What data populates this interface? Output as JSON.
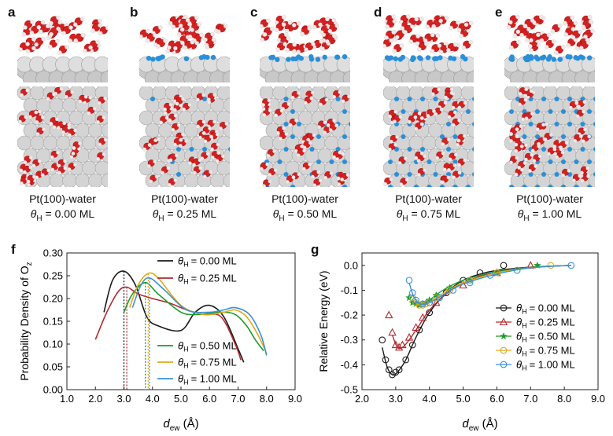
{
  "panels": [
    {
      "label": "a",
      "title": "Pt(100)-water",
      "coverage_text": "= 0.00 ML"
    },
    {
      "label": "b",
      "title": "Pt(100)-water",
      "coverage_text": "= 0.25 ML"
    },
    {
      "label": "c",
      "title": "Pt(100)-water",
      "coverage_text": "= 0.50 ML"
    },
    {
      "label": "d",
      "title": "Pt(100)-water",
      "coverage_text": "= 0.75 ML"
    },
    {
      "label": "e",
      "title": "Pt(100)-water",
      "coverage_text": "= 1.00 ML"
    }
  ],
  "theta_symbol": "θ",
  "theta_sub": "H",
  "colors": {
    "oxygen": "#d42020",
    "hydrogen": "#f3e8e8",
    "pt": "#c8c8c8",
    "h_ads": "#2a8fd8"
  },
  "chart_data": [
    {
      "type": "line",
      "panel_label": "f",
      "xlabel_main": "d",
      "xlabel_sub": "ew",
      "xlabel_unit": " (Å)",
      "ylabel_main": "Probability Density of O",
      "ylabel_sub": "z",
      "xlim": [
        1.0,
        9.0
      ],
      "ylim": [
        0.0,
        0.3
      ],
      "xticks": [
        "1.0",
        "2.0",
        "3.0",
        "4.0",
        "5.0",
        "6.0",
        "7.0",
        "8.0",
        "9.0"
      ],
      "yticks": [
        "0.00",
        "0.05",
        "0.10",
        "0.15",
        "0.20",
        "0.25",
        "0.30"
      ],
      "series": [
        {
          "name": "= 0.00 ML",
          "color": "#1a1a1a",
          "peak": 3.0,
          "x": [
            2.3,
            2.6,
            3.0,
            3.4,
            3.8,
            4.2,
            5.0,
            5.5,
            6.0,
            6.5,
            7.0,
            7.2
          ],
          "y": [
            0.17,
            0.24,
            0.26,
            0.23,
            0.16,
            0.14,
            0.13,
            0.17,
            0.185,
            0.16,
            0.09,
            0.06
          ]
        },
        {
          "name": "= 0.25 ML",
          "color": "#b02a30",
          "peak": 3.1,
          "x": [
            2.0,
            2.4,
            2.8,
            3.1,
            3.5,
            4.0,
            4.6,
            5.2,
            5.8,
            6.4,
            6.9,
            7.1
          ],
          "y": [
            0.11,
            0.17,
            0.215,
            0.225,
            0.21,
            0.2,
            0.19,
            0.175,
            0.165,
            0.16,
            0.1,
            0.065
          ]
        },
        {
          "name": "= 0.50 ML",
          "color": "#1c9a2a",
          "peak": 3.75,
          "x": [
            3.0,
            3.3,
            3.75,
            4.2,
            5.0,
            5.6,
            6.4,
            6.9,
            7.3,
            7.6,
            7.9
          ],
          "y": [
            0.17,
            0.21,
            0.235,
            0.21,
            0.17,
            0.165,
            0.17,
            0.165,
            0.14,
            0.11,
            0.085
          ]
        },
        {
          "name": "= 0.75 ML",
          "color": "#e0a818",
          "peak": 3.85,
          "x": [
            3.2,
            3.5,
            3.85,
            4.2,
            5.0,
            5.8,
            6.5,
            6.9,
            7.3,
            7.7,
            8.0
          ],
          "y": [
            0.18,
            0.23,
            0.255,
            0.245,
            0.185,
            0.165,
            0.17,
            0.175,
            0.16,
            0.12,
            0.08
          ]
        },
        {
          "name": "= 1.00 ML",
          "color": "#3a92d6",
          "peak": 3.9,
          "x": [
            3.3,
            3.6,
            3.9,
            4.4,
            5.2,
            6.0,
            6.5,
            6.9,
            7.4,
            7.8,
            8.0
          ],
          "y": [
            0.18,
            0.23,
            0.245,
            0.22,
            0.175,
            0.17,
            0.175,
            0.18,
            0.165,
            0.12,
            0.075
          ]
        }
      ]
    },
    {
      "type": "scatter",
      "panel_label": "g",
      "xlabel_main": "d",
      "xlabel_sub": "ew",
      "xlabel_unit": " (Å)",
      "ylabel": "Relative Energy (eV)",
      "xlim": [
        2.0,
        9.0
      ],
      "ylim": [
        -0.5,
        0.05
      ],
      "xticks": [
        "2.0",
        "3.0",
        "4.0",
        "5.0",
        "6.0",
        "7.0",
        "8.0",
        "9.0"
      ],
      "yticks": [
        "-0.5",
        "-0.4",
        "-0.3",
        "-0.2",
        "-0.1",
        "0.0"
      ],
      "series": [
        {
          "name": "= 0.00 ML",
          "color": "#1a1a1a",
          "marker": "circle",
          "points_x": [
            2.6,
            2.7,
            2.8,
            2.9,
            3.0,
            3.1,
            3.3,
            3.5,
            3.7,
            4.0,
            4.5,
            5.0,
            5.5,
            6.2
          ],
          "points_y": [
            -0.3,
            -0.38,
            -0.42,
            -0.44,
            -0.43,
            -0.42,
            -0.38,
            -0.32,
            -0.26,
            -0.19,
            -0.11,
            -0.06,
            -0.03,
            0.0
          ],
          "fit_x": [
            2.6,
            2.75,
            2.9,
            3.05,
            3.3,
            3.6,
            4.0,
            4.5,
            5.0,
            5.5,
            6.0,
            7.0,
            8.2
          ],
          "fit_y": [
            -0.33,
            -0.41,
            -0.44,
            -0.43,
            -0.38,
            -0.29,
            -0.19,
            -0.11,
            -0.06,
            -0.035,
            -0.02,
            -0.007,
            0.0
          ]
        },
        {
          "name": "= 0.25 ML",
          "color": "#b02a30",
          "marker": "triangle",
          "points_x": [
            2.8,
            2.9,
            3.0,
            3.1,
            3.2,
            3.4,
            3.6,
            3.8,
            4.2,
            5.0,
            6.0,
            7.0
          ],
          "points_y": [
            -0.2,
            -0.27,
            -0.32,
            -0.33,
            -0.32,
            -0.29,
            -0.25,
            -0.21,
            -0.15,
            -0.08,
            -0.03,
            0.0
          ],
          "fit_x": [
            2.9,
            3.05,
            3.2,
            3.4,
            3.7,
            4.0,
            4.5,
            5.0,
            6.0,
            7.0,
            8.2
          ],
          "fit_y": [
            -0.28,
            -0.33,
            -0.33,
            -0.3,
            -0.24,
            -0.18,
            -0.115,
            -0.07,
            -0.025,
            -0.008,
            0.0
          ]
        },
        {
          "name": "= 0.50 ML",
          "color": "#1c9a2a",
          "marker": "star",
          "points_x": [
            3.4,
            3.5,
            3.6,
            3.7,
            3.8,
            3.9,
            4.0,
            4.2,
            4.6,
            5.2,
            6.0,
            7.2
          ],
          "points_y": [
            -0.13,
            -0.15,
            -0.155,
            -0.16,
            -0.155,
            -0.15,
            -0.14,
            -0.12,
            -0.09,
            -0.06,
            -0.03,
            0.0
          ],
          "fit_x": [
            3.4,
            3.6,
            3.8,
            4.0,
            4.4,
            5.0,
            6.0,
            7.0,
            8.2
          ],
          "fit_y": [
            -0.135,
            -0.155,
            -0.16,
            -0.14,
            -0.1,
            -0.06,
            -0.025,
            -0.008,
            0.0
          ]
        },
        {
          "name": "= 0.75 ML",
          "color": "#e0a818",
          "marker": "circle",
          "points_x": [
            3.5,
            3.6,
            3.7,
            3.8,
            3.9,
            4.0,
            4.2,
            4.6,
            5.2,
            6.0,
            7.6
          ],
          "points_y": [
            -0.13,
            -0.15,
            -0.16,
            -0.16,
            -0.155,
            -0.15,
            -0.13,
            -0.1,
            -0.06,
            -0.03,
            0.0
          ],
          "fit_x": [
            3.5,
            3.7,
            3.9,
            4.1,
            4.5,
            5.0,
            6.0,
            7.0,
            8.2
          ],
          "fit_y": [
            -0.14,
            -0.16,
            -0.155,
            -0.14,
            -0.105,
            -0.07,
            -0.03,
            -0.01,
            0.0
          ]
        },
        {
          "name": "= 1.00 ML",
          "color": "#3a92d6",
          "marker": "circle",
          "points_x": [
            3.4,
            3.5,
            3.6,
            3.8,
            4.0,
            4.3,
            4.7,
            5.2,
            5.8,
            6.6,
            8.2
          ],
          "points_y": [
            -0.06,
            -0.11,
            -0.14,
            -0.155,
            -0.15,
            -0.13,
            -0.1,
            -0.07,
            -0.04,
            -0.02,
            0.0
          ],
          "fit_x": [
            3.4,
            3.55,
            3.75,
            4.0,
            4.4,
            5.0,
            6.0,
            7.0,
            8.2
          ],
          "fit_y": [
            -0.07,
            -0.13,
            -0.155,
            -0.15,
            -0.12,
            -0.075,
            -0.035,
            -0.01,
            0.0
          ]
        }
      ]
    }
  ]
}
